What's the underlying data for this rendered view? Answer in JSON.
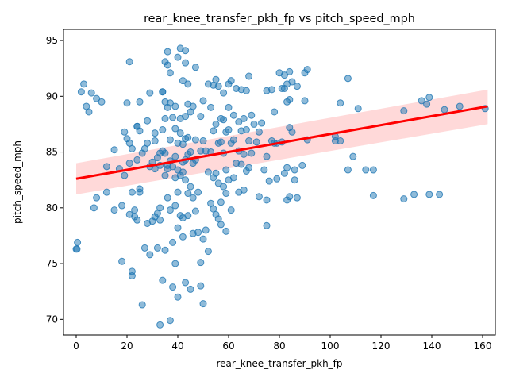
{
  "chart_data": {
    "type": "scatter",
    "title": "rear_knee_transfer_pkh_fp vs pitch_speed_mph",
    "xlabel": "rear_knee_transfer_pkh_fp",
    "ylabel": "pitch_speed_mph",
    "xlim": [
      -5,
      165
    ],
    "ylim": [
      68.6,
      96.0
    ],
    "xticks": [
      0,
      20,
      40,
      60,
      80,
      100,
      120,
      140,
      160
    ],
    "yticks": [
      70,
      75,
      80,
      85,
      90,
      95
    ],
    "grid": false,
    "legend": "none",
    "colors": {
      "points": "#1f77b4",
      "regression_line": "#ff0000",
      "confidence_band": "#ff0000"
    },
    "regression": {
      "x": [
        0,
        162
      ],
      "y": [
        82.6,
        89.1
      ],
      "ci_lower": [
        81.2,
        87.5
      ],
      "ci_upper": [
        84.0,
        90.6
      ]
    },
    "points": [
      [
        0.0,
        76.3
      ],
      [
        0.3,
        76.3
      ],
      [
        0.5,
        76.9
      ],
      [
        2,
        90.4
      ],
      [
        3,
        91.1
      ],
      [
        4,
        89.1
      ],
      [
        5,
        88.6
      ],
      [
        6,
        90.3
      ],
      [
        7,
        80.0
      ],
      [
        8,
        89.8
      ],
      [
        8,
        80.9
      ],
      [
        10,
        89.5
      ],
      [
        12,
        83.7
      ],
      [
        12,
        81.4
      ],
      [
        15,
        79.8
      ],
      [
        15,
        85.2
      ],
      [
        17,
        83.5
      ],
      [
        18,
        75.2
      ],
      [
        18,
        80.2
      ],
      [
        19,
        86.8
      ],
      [
        19,
        82.9
      ],
      [
        20,
        86.2
      ],
      [
        20,
        89.4
      ],
      [
        21,
        84.0
      ],
      [
        21,
        85.8
      ],
      [
        21,
        93.1
      ],
      [
        21,
        79.4
      ],
      [
        22,
        74.3
      ],
      [
        22,
        73.9
      ],
      [
        22,
        81.4
      ],
      [
        22,
        85.3
      ],
      [
        23,
        79.2
      ],
      [
        23,
        79.8
      ],
      [
        24,
        87.3
      ],
      [
        24,
        87.3
      ],
      [
        24,
        84.3
      ],
      [
        24,
        78.9
      ],
      [
        25,
        86.9
      ],
      [
        25,
        89.5
      ],
      [
        25,
        81.4
      ],
      [
        25,
        81.7
      ],
      [
        26,
        71.3
      ],
      [
        26,
        84.9
      ],
      [
        27,
        76.4
      ],
      [
        27,
        85.3
      ],
      [
        28,
        85.8
      ],
      [
        28,
        87.8
      ],
      [
        28,
        78.6
      ],
      [
        29,
        90.3
      ],
      [
        29,
        75.8
      ],
      [
        29,
        83.7
      ],
      [
        30,
        78.8
      ],
      [
        30,
        84.1
      ],
      [
        31,
        86.7
      ],
      [
        31,
        79.2
      ],
      [
        31,
        86.0
      ],
      [
        31,
        83.5
      ],
      [
        32,
        79.5
      ],
      [
        32,
        76.4
      ],
      [
        32,
        84.5
      ],
      [
        33,
        83.8
      ],
      [
        33,
        80.0
      ],
      [
        33,
        78.9
      ],
      [
        33,
        84.9
      ],
      [
        33,
        69.5
      ],
      [
        34,
        73.5
      ],
      [
        34,
        90.4
      ],
      [
        34,
        90.4
      ],
      [
        34,
        87.0
      ],
      [
        34,
        85.1
      ],
      [
        35,
        76.2
      ],
      [
        35,
        82.9
      ],
      [
        35,
        93.1
      ],
      [
        35,
        84.9
      ],
      [
        35,
        89.5
      ],
      [
        35,
        88.0
      ],
      [
        36,
        92.8
      ],
      [
        36,
        89.0
      ],
      [
        36,
        94.0
      ],
      [
        36,
        83.8
      ],
      [
        36,
        83.5
      ],
      [
        36,
        80.9
      ],
      [
        37,
        69.9
      ],
      [
        37,
        79.8
      ],
      [
        37,
        84.2
      ],
      [
        37,
        89.4
      ],
      [
        37,
        92.1
      ],
      [
        37,
        86.1
      ],
      [
        38,
        88.1
      ],
      [
        38,
        83.7
      ],
      [
        38,
        72.9
      ],
      [
        38,
        76.9
      ],
      [
        39,
        75.0
      ],
      [
        39,
        84.6
      ],
      [
        39,
        80.2
      ],
      [
        39,
        82.7
      ],
      [
        39,
        87.1
      ],
      [
        39,
        89.1
      ],
      [
        40,
        93.5
      ],
      [
        40,
        85.8
      ],
      [
        40,
        83.4
      ],
      [
        40,
        81.4
      ],
      [
        40,
        78.2
      ],
      [
        40,
        72.0
      ],
      [
        41,
        94.3
      ],
      [
        41,
        88.0
      ],
      [
        41,
        86.7
      ],
      [
        41,
        82.9
      ],
      [
        41,
        79.3
      ],
      [
        42,
        91.4
      ],
      [
        42,
        83.2
      ],
      [
        42,
        85.7
      ],
      [
        42,
        79.1
      ],
      [
        42,
        77.4
      ],
      [
        42,
        84.1
      ],
      [
        43,
        94.1
      ],
      [
        43,
        93.0
      ],
      [
        43,
        88.2
      ],
      [
        43,
        86.2
      ],
      [
        43,
        84.3
      ],
      [
        43,
        82.5
      ],
      [
        43,
        73.3
      ],
      [
        44,
        91.1
      ],
      [
        44,
        89.3
      ],
      [
        44,
        86.3
      ],
      [
        44,
        84.8
      ],
      [
        44,
        81.3
      ],
      [
        44,
        79.3
      ],
      [
        45,
        88.6
      ],
      [
        45,
        85.0
      ],
      [
        45,
        81.9
      ],
      [
        45,
        72.7
      ],
      [
        46,
        89.1
      ],
      [
        46,
        84.0
      ],
      [
        46,
        80.9
      ],
      [
        46,
        77.7
      ],
      [
        47,
        92.6
      ],
      [
        47,
        86.1
      ],
      [
        47,
        84.3
      ],
      [
        47,
        79.7
      ],
      [
        48,
        81.4
      ],
      [
        48,
        77.8
      ],
      [
        49,
        88.2
      ],
      [
        49,
        85.1
      ],
      [
        49,
        73.0
      ],
      [
        49,
        75.1
      ],
      [
        50,
        89.6
      ],
      [
        50,
        86.0
      ],
      [
        50,
        77.2
      ],
      [
        50,
        71.4
      ],
      [
        51,
        85.1
      ],
      [
        51,
        78.0
      ],
      [
        52,
        91.1
      ],
      [
        52,
        83.2
      ],
      [
        52,
        76.1
      ],
      [
        53,
        89.0
      ],
      [
        53,
        85.0
      ],
      [
        53,
        80.4
      ],
      [
        54,
        91.0
      ],
      [
        54,
        86.9
      ],
      [
        54,
        82.7
      ],
      [
        54,
        79.9
      ],
      [
        55,
        91.5
      ],
      [
        55,
        87.5
      ],
      [
        55,
        83.1
      ],
      [
        55,
        79.4
      ],
      [
        56,
        90.9
      ],
      [
        56,
        85.8
      ],
      [
        56,
        82.2
      ],
      [
        56,
        79.0
      ],
      [
        57,
        88.0
      ],
      [
        57,
        85.9
      ],
      [
        57,
        80.5
      ],
      [
        57,
        78.5
      ],
      [
        58,
        90.3
      ],
      [
        58,
        87.9
      ],
      [
        58,
        84.9
      ],
      [
        58,
        81.9
      ],
      [
        59,
        83.4
      ],
      [
        59,
        86.8
      ],
      [
        59,
        81.3
      ],
      [
        59,
        77.9
      ],
      [
        60,
        91.1
      ],
      [
        60,
        89.0
      ],
      [
        60,
        87.0
      ],
      [
        60,
        82.5
      ],
      [
        61,
        91.4
      ],
      [
        61,
        85.8
      ],
      [
        61,
        79.8
      ],
      [
        62,
        88.3
      ],
      [
        62,
        86.1
      ],
      [
        62,
        82.7
      ],
      [
        63,
        90.7
      ],
      [
        63,
        84.0
      ],
      [
        64,
        87.7
      ],
      [
        64,
        85.1
      ],
      [
        64,
        81.4
      ],
      [
        65,
        90.6
      ],
      [
        65,
        86.9
      ],
      [
        65,
        83.9
      ],
      [
        66,
        88.0
      ],
      [
        66,
        84.8
      ],
      [
        66,
        81.6
      ],
      [
        67,
        90.5
      ],
      [
        67,
        87.0
      ],
      [
        67,
        83.3
      ],
      [
        68,
        91.8
      ],
      [
        68,
        86.0
      ],
      [
        68,
        83.6
      ],
      [
        69,
        88.3
      ],
      [
        69,
        84.9
      ],
      [
        70,
        87.5
      ],
      [
        71,
        85.9
      ],
      [
        72,
        86.8
      ],
      [
        72,
        81.0
      ],
      [
        73,
        87.6
      ],
      [
        74,
        83.4
      ],
      [
        75,
        90.5
      ],
      [
        75,
        84.6
      ],
      [
        75,
        80.7
      ],
      [
        75,
        78.4
      ],
      [
        76,
        82.4
      ],
      [
        77,
        90.6
      ],
      [
        77,
        86.0
      ],
      [
        78,
        88.6
      ],
      [
        78,
        85.8
      ],
      [
        79,
        85.8
      ],
      [
        79,
        82.6
      ],
      [
        80,
        92.1
      ],
      [
        81,
        90.7
      ],
      [
        81,
        85.9
      ],
      [
        82,
        91.9
      ],
      [
        82,
        90.7
      ],
      [
        82,
        83.1
      ],
      [
        83,
        91.1
      ],
      [
        83,
        89.5
      ],
      [
        83,
        83.6
      ],
      [
        83,
        80.7
      ],
      [
        84,
        92.2
      ],
      [
        84,
        89.7
      ],
      [
        84,
        87.2
      ],
      [
        84,
        81.0
      ],
      [
        85,
        91.3
      ],
      [
        85,
        86.8
      ],
      [
        86,
        82.5
      ],
      [
        86,
        83.4
      ],
      [
        87,
        90.9
      ],
      [
        87,
        80.9
      ],
      [
        89,
        83.8
      ],
      [
        90,
        92.1
      ],
      [
        90,
        89.6
      ],
      [
        91,
        92.4
      ],
      [
        91,
        86.1
      ],
      [
        102,
        86.4
      ],
      [
        102,
        86.0
      ],
      [
        104,
        89.4
      ],
      [
        104,
        86.0
      ],
      [
        107,
        83.4
      ],
      [
        107,
        91.6
      ],
      [
        109,
        84.6
      ],
      [
        111,
        88.9
      ],
      [
        114,
        83.4
      ],
      [
        117,
        83.4
      ],
      [
        117,
        81.1
      ],
      [
        129,
        88.7
      ],
      [
        129,
        80.8
      ],
      [
        133,
        81.2
      ],
      [
        136,
        89.6
      ],
      [
        138,
        89.3
      ],
      [
        139,
        89.9
      ],
      [
        139,
        81.2
      ],
      [
        143,
        81.2
      ],
      [
        145,
        88.8
      ],
      [
        151,
        89.1
      ],
      [
        161,
        88.9
      ]
    ]
  }
}
